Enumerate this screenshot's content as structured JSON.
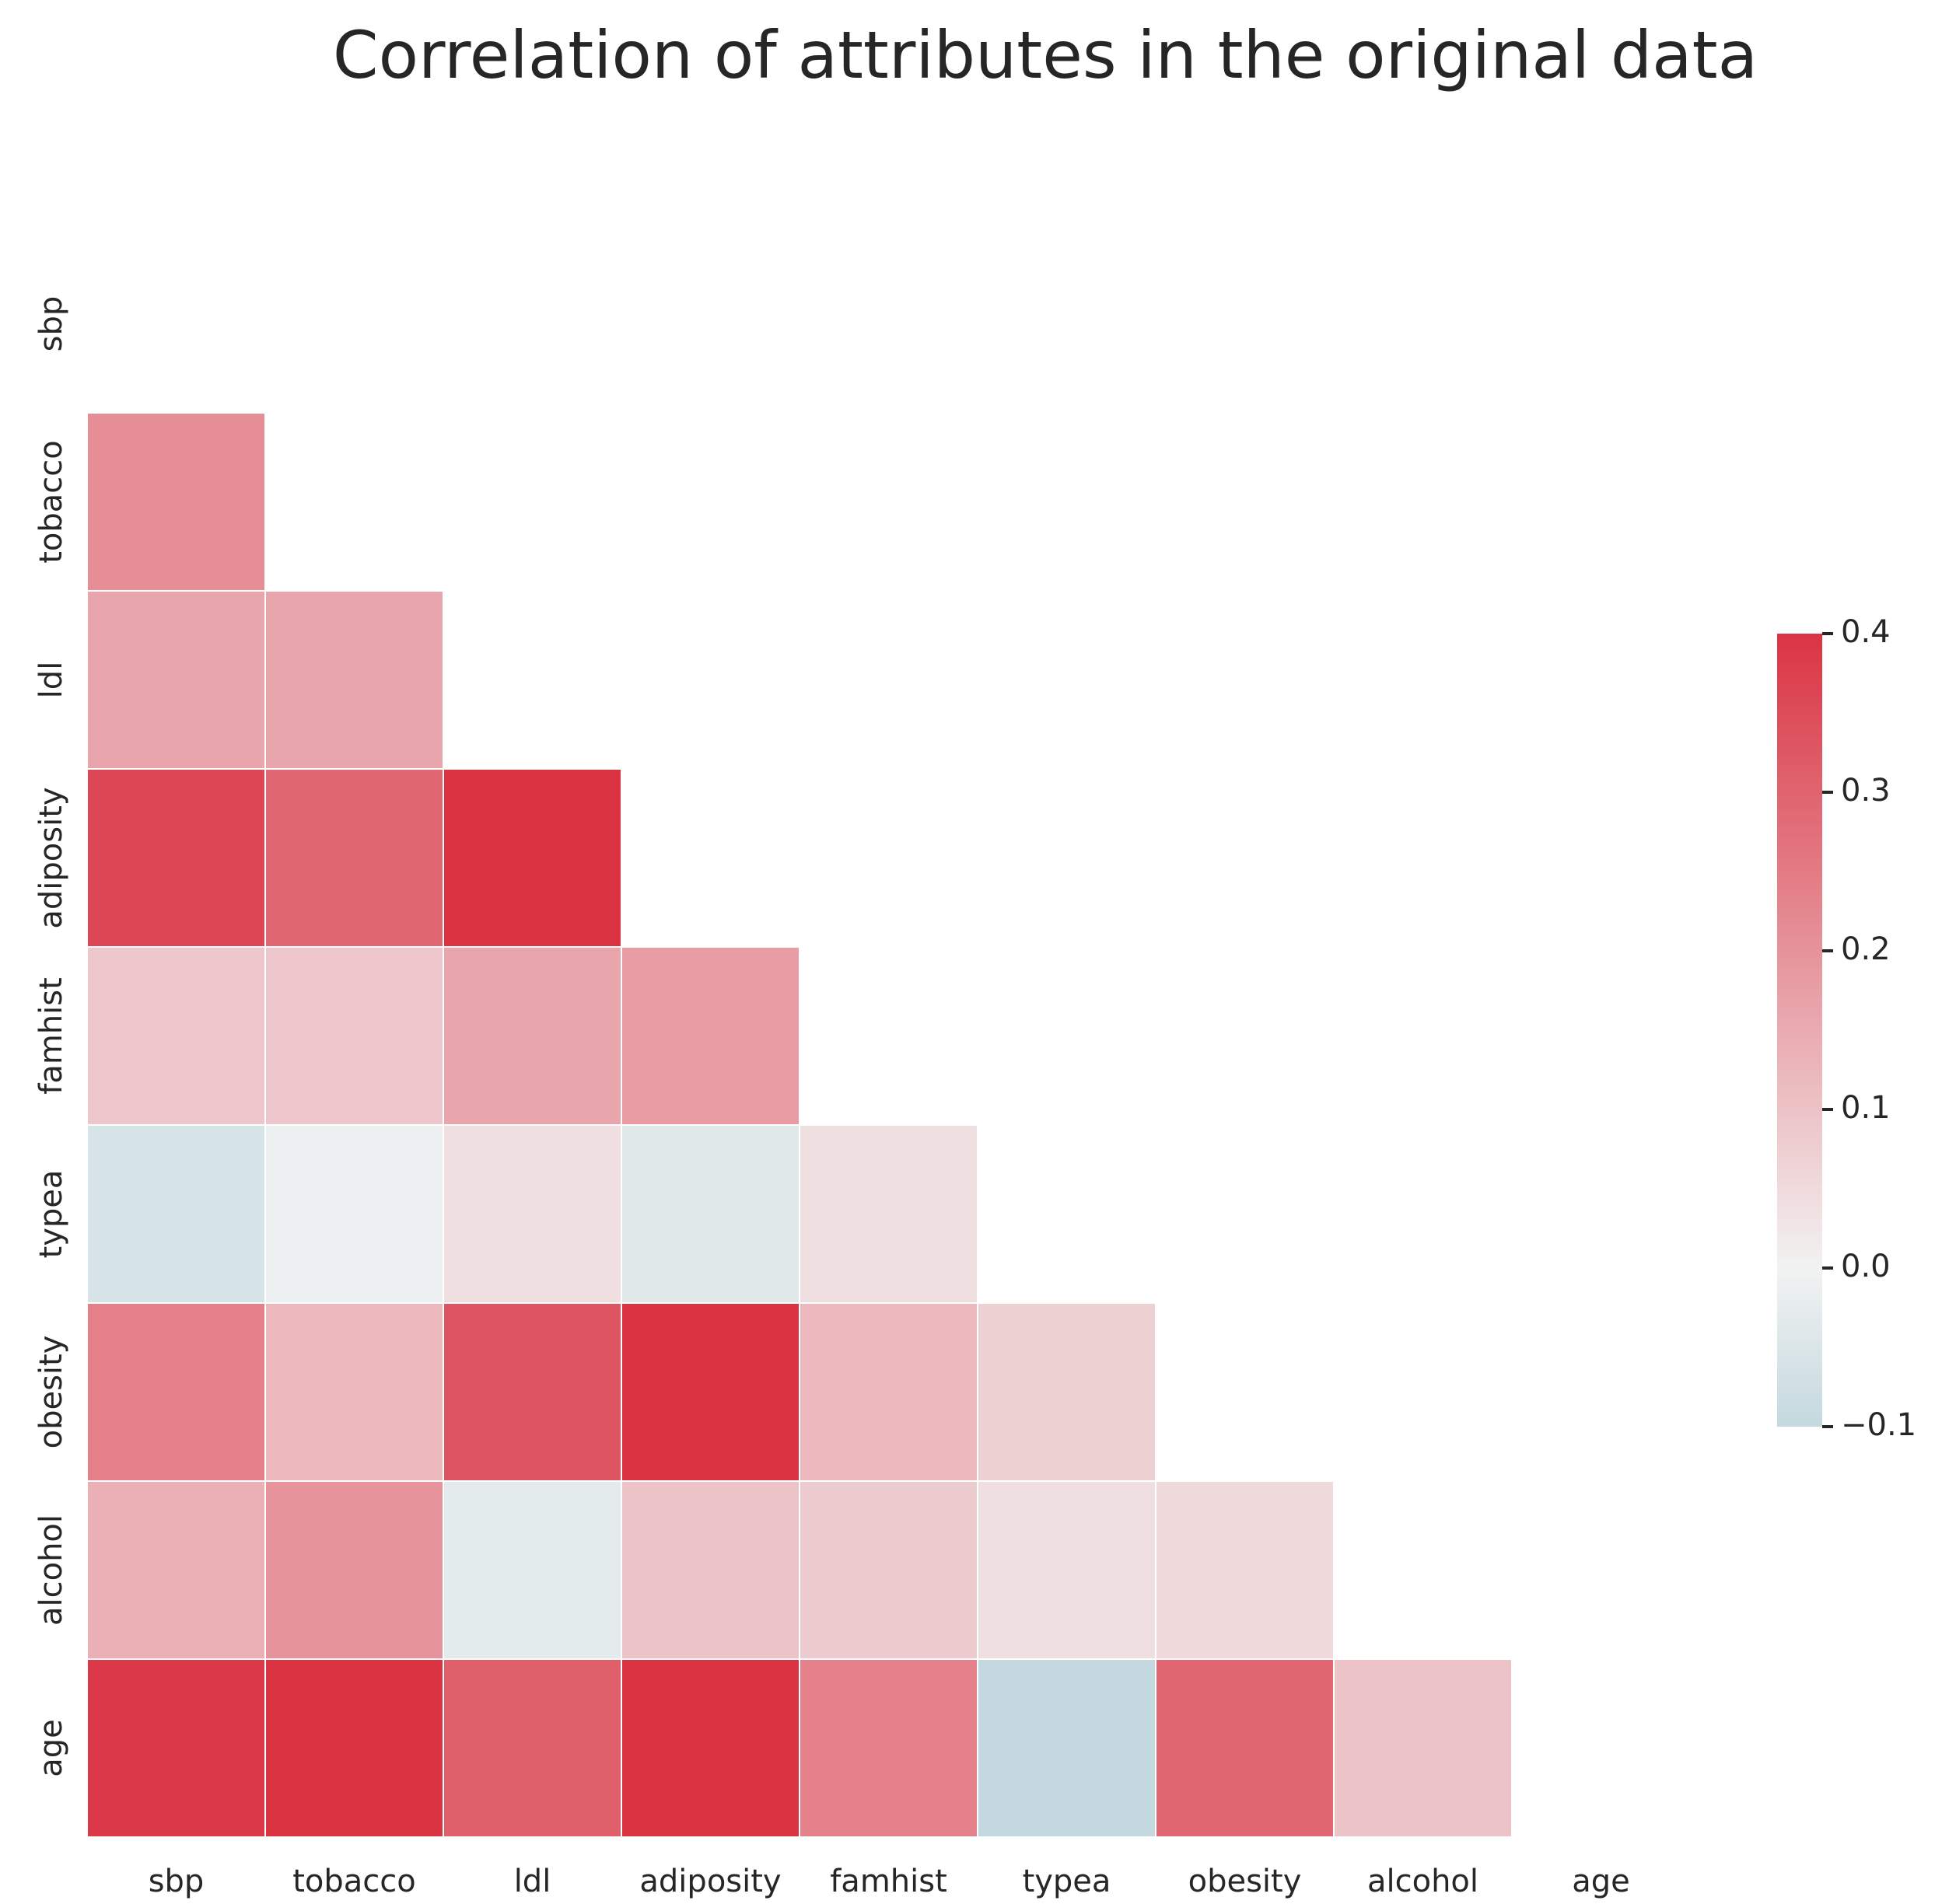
{
  "chart_data": {
    "type": "heatmap",
    "title": "Correlation of attributes in the original data",
    "xlabel": "",
    "ylabel": "",
    "variables": [
      "sbp",
      "tobacco",
      "ldl",
      "adiposity",
      "famhist",
      "typea",
      "obesity",
      "alcohol",
      "age"
    ],
    "mask": "upper-triangle-including-diagonal",
    "matrix": [
      [
        null,
        null,
        null,
        null,
        null,
        null,
        null,
        null,
        null
      ],
      [
        0.21,
        null,
        null,
        null,
        null,
        null,
        null,
        null,
        null
      ],
      [
        0.16,
        0.16,
        null,
        null,
        null,
        null,
        null,
        null,
        null
      ],
      [
        0.36,
        0.29,
        0.44,
        null,
        null,
        null,
        null,
        null,
        null
      ],
      [
        0.09,
        0.09,
        0.16,
        0.18,
        null,
        null,
        null,
        null,
        null
      ],
      [
        -0.06,
        -0.01,
        0.04,
        -0.04,
        0.04,
        null,
        null,
        null,
        null
      ],
      [
        0.24,
        0.12,
        0.33,
        0.72,
        0.12,
        0.07,
        null,
        null,
        null
      ],
      [
        0.14,
        0.2,
        -0.03,
        0.1,
        0.08,
        0.04,
        0.05,
        null,
        null
      ],
      [
        0.39,
        0.45,
        0.31,
        0.63,
        0.24,
        -0.1,
        0.29,
        0.1,
        null
      ]
    ],
    "colorbar": {
      "vmin": -0.1,
      "vmax": 0.4,
      "ticks": [
        -0.1,
        0.0,
        0.1,
        0.2,
        0.3,
        0.4
      ],
      "tick_labels": [
        "−0.1",
        "0.0",
        "0.1",
        "0.2",
        "0.3",
        "0.4"
      ],
      "colors": {
        "low": "#c4d9df",
        "mid": "#f2f2f2",
        "high": "#da3443"
      }
    },
    "grid": false,
    "cell_border_color": "#ffffff"
  }
}
